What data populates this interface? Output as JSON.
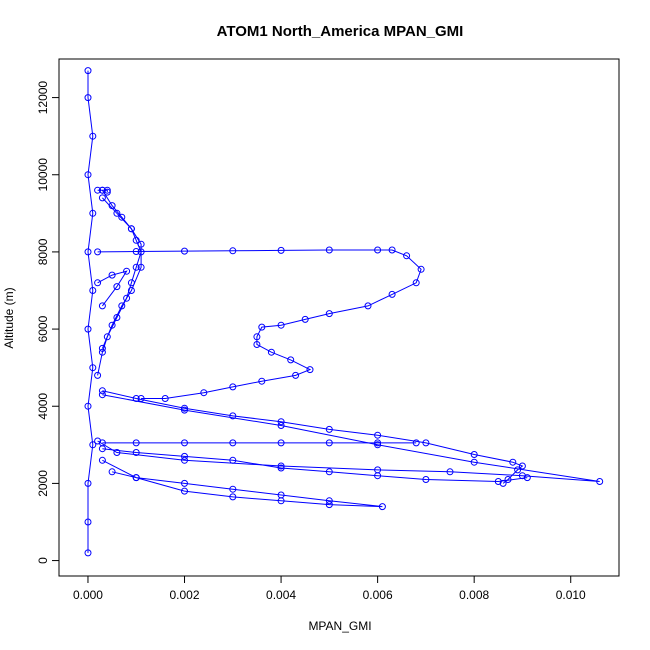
{
  "chart_data": {
    "type": "line",
    "title": "ATOM1 North_America MPAN_GMI",
    "xlabel": "MPAN_GMI",
    "ylabel": "Altitude (m)",
    "xlim": [
      -0.0006,
      0.011
    ],
    "ylim": [
      -400,
      13000
    ],
    "x_ticks": [
      0.0,
      0.002,
      0.004,
      0.006,
      0.008,
      0.01
    ],
    "x_tick_labels": [
      "0.000",
      "0.002",
      "0.004",
      "0.006",
      "0.008",
      "0.010"
    ],
    "y_ticks": [
      0,
      2000,
      4000,
      6000,
      8000,
      10000,
      12000
    ],
    "y_tick_labels": [
      "0",
      "2000",
      "4000",
      "6000",
      "8000",
      "10000",
      "12000"
    ],
    "grid": false,
    "legend": "none",
    "color": "#0000ff",
    "series": [
      {
        "values": [
          [
            0.0,
            200
          ],
          [
            0.0,
            1000
          ],
          [
            0.0,
            2000
          ],
          [
            0.0001,
            3000
          ],
          [
            0.0,
            4000
          ],
          [
            0.0001,
            5000
          ],
          [
            0.0,
            6000
          ],
          [
            0.0001,
            7000
          ],
          [
            0.0,
            8000
          ],
          [
            0.0001,
            9000
          ],
          [
            0.0,
            10000
          ],
          [
            0.0001,
            11000
          ],
          [
            0.0,
            12000
          ],
          [
            0.0,
            12700
          ]
        ]
      },
      {
        "values": [
          [
            0.0002,
            8000
          ],
          [
            0.001,
            8010
          ],
          [
            0.002,
            8020
          ],
          [
            0.003,
            8030
          ],
          [
            0.004,
            8040
          ],
          [
            0.005,
            8050
          ],
          [
            0.006,
            8050
          ],
          [
            0.0063,
            8050
          ],
          [
            0.0066,
            7900
          ],
          [
            0.0069,
            7550
          ],
          [
            0.0068,
            7200
          ],
          [
            0.0063,
            6900
          ],
          [
            0.0058,
            6600
          ],
          [
            0.005,
            6400
          ],
          [
            0.0045,
            6250
          ],
          [
            0.004,
            6100
          ],
          [
            0.0036,
            6050
          ],
          [
            0.0035,
            5800
          ],
          [
            0.0035,
            5600
          ],
          [
            0.0038,
            5400
          ],
          [
            0.0042,
            5200
          ],
          [
            0.0046,
            4950
          ],
          [
            0.0043,
            4800
          ],
          [
            0.0036,
            4650
          ],
          [
            0.003,
            4500
          ],
          [
            0.0024,
            4350
          ],
          [
            0.0016,
            4200
          ],
          [
            0.0011,
            4200
          ]
        ]
      },
      {
        "values": [
          [
            0.0003,
            4400
          ],
          [
            0.001,
            4200
          ],
          [
            0.002,
            3950
          ],
          [
            0.003,
            3750
          ],
          [
            0.004,
            3600
          ],
          [
            0.005,
            3400
          ],
          [
            0.006,
            3250
          ],
          [
            0.007,
            3050
          ],
          [
            0.008,
            2750
          ],
          [
            0.0088,
            2550
          ],
          [
            0.009,
            2450
          ],
          [
            0.0089,
            2350
          ],
          [
            0.0087,
            2100
          ],
          [
            0.0086,
            2000
          ]
        ]
      },
      {
        "values": [
          [
            0.0003,
            4300
          ],
          [
            0.002,
            3900
          ],
          [
            0.004,
            3500
          ],
          [
            0.006,
            3000
          ],
          [
            0.008,
            2550
          ],
          [
            0.0106,
            2050
          ],
          [
            0.009,
            2200
          ],
          [
            0.0075,
            2300
          ],
          [
            0.006,
            2350
          ],
          [
            0.004,
            2450
          ],
          [
            0.002,
            2600
          ],
          [
            0.0006,
            2800
          ],
          [
            0.0002,
            3100
          ]
        ]
      },
      {
        "values": [
          [
            0.0003,
            2900
          ],
          [
            0.001,
            2800
          ],
          [
            0.002,
            2700
          ],
          [
            0.003,
            2600
          ],
          [
            0.004,
            2400
          ],
          [
            0.005,
            2300
          ],
          [
            0.006,
            2200
          ],
          [
            0.007,
            2100
          ],
          [
            0.0085,
            2050
          ],
          [
            0.0091,
            2150
          ]
        ]
      },
      {
        "values": [
          [
            0.0003,
            2600
          ],
          [
            0.001,
            2150
          ],
          [
            0.002,
            1800
          ],
          [
            0.003,
            1650
          ],
          [
            0.004,
            1550
          ],
          [
            0.005,
            1450
          ],
          [
            0.0061,
            1400
          ],
          [
            0.005,
            1550
          ],
          [
            0.004,
            1700
          ],
          [
            0.003,
            1850
          ],
          [
            0.002,
            2000
          ],
          [
            0.001,
            2150
          ],
          [
            0.0005,
            2300
          ]
        ]
      },
      {
        "values": [
          [
            0.0003,
            3050
          ],
          [
            0.001,
            3050
          ],
          [
            0.002,
            3050
          ],
          [
            0.003,
            3050
          ],
          [
            0.004,
            3050
          ],
          [
            0.005,
            3050
          ],
          [
            0.006,
            3050
          ],
          [
            0.0068,
            3050
          ]
        ]
      },
      {
        "values": [
          [
            0.0003,
            9600
          ],
          [
            0.0005,
            9200
          ],
          [
            0.0007,
            8900
          ],
          [
            0.0009,
            8600
          ],
          [
            0.001,
            8300
          ],
          [
            0.0011,
            8000
          ],
          [
            0.001,
            7600
          ],
          [
            0.0009,
            7200
          ],
          [
            0.0008,
            6800
          ],
          [
            0.0006,
            6300
          ],
          [
            0.0004,
            5800
          ],
          [
            0.0003,
            5400
          ],
          [
            0.0002,
            4800
          ]
        ]
      },
      {
        "values": [
          [
            0.0003,
            9400
          ],
          [
            0.0006,
            9000
          ],
          [
            0.0009,
            8600
          ],
          [
            0.0011,
            8200
          ],
          [
            0.0011,
            7600
          ],
          [
            0.0009,
            7000
          ],
          [
            0.0007,
            6600
          ],
          [
            0.0005,
            6100
          ],
          [
            0.0003,
            5500
          ]
        ]
      },
      {
        "values": [
          [
            0.0002,
            9600
          ],
          [
            0.0003,
            9600
          ],
          [
            0.0004,
            9600
          ],
          [
            0.0004,
            9550
          ]
        ]
      },
      {
        "values": [
          [
            0.0002,
            7200
          ],
          [
            0.0005,
            7400
          ],
          [
            0.0008,
            7500
          ],
          [
            0.0006,
            7100
          ],
          [
            0.0003,
            6600
          ]
        ]
      }
    ]
  }
}
